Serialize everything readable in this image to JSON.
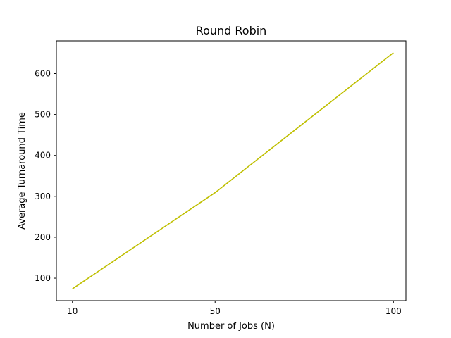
{
  "chart_data": {
    "type": "line",
    "title": "Round Robin",
    "xlabel": "Number of Jobs (N)",
    "ylabel": "Average Turnaround Time",
    "x": [
      10,
      50,
      100
    ],
    "x_ticks": [
      10,
      50,
      100
    ],
    "y_ticks": [
      100,
      200,
      300,
      400,
      500,
      600
    ],
    "xlim": [
      5.5,
      103.5
    ],
    "ylim": [
      45,
      680
    ],
    "series": [
      {
        "color": "#bfbf00",
        "values": [
          74,
          309,
          651
        ]
      }
    ],
    "grid": false,
    "legend": "none"
  }
}
